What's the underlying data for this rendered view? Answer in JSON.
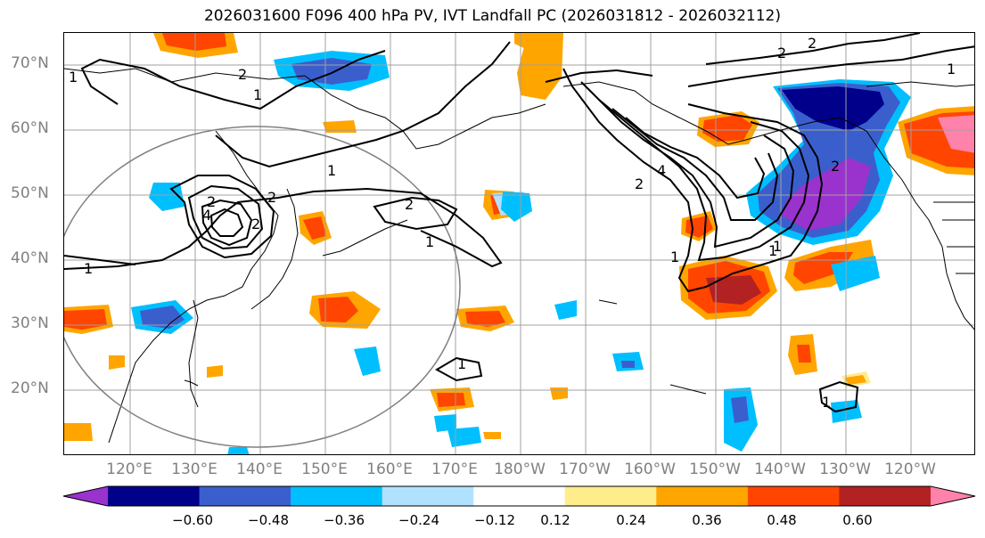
{
  "title": "2026031600 F096 400 hPa PV, IVT Landfall PC (2026031812 - 2026032112)",
  "lat_labels": [
    "70°N",
    "60°N",
    "50°N",
    "40°N",
    "30°N",
    "20°N"
  ],
  "lon_labels": [
    "120°E",
    "130°E",
    "140°E",
    "150°E",
    "160°E",
    "170°E",
    "180°W",
    "170°W",
    "160°W",
    "150°W",
    "140°W",
    "130°W",
    "120°W"
  ],
  "colorbar": {
    "ticks": [
      "−0.60",
      "−0.48",
      "−0.36",
      "−0.24",
      "−0.12",
      "0.12",
      "0.24",
      "0.36",
      "0.48",
      "0.60"
    ],
    "colors": [
      "#9a32cd",
      "#00008b",
      "#3a5fcd",
      "#00bfff",
      "#b0e2ff",
      "#ffffff",
      "#ffec8b",
      "#ffa500",
      "#ff4500",
      "#b22222",
      "#ff82ab"
    ],
    "extend": "both"
  },
  "contour_labels": [
    "2",
    "1",
    "1",
    "1",
    "2",
    "1",
    "1",
    "4",
    "2",
    "1",
    "2",
    "2",
    "1",
    "2",
    "1",
    "4",
    "2",
    "1",
    "2",
    "1",
    "1",
    "2"
  ],
  "colors": {
    "land_line": "#000000",
    "grid": "#a0a0a0",
    "contour": "#000000",
    "circle": "#808080"
  }
}
